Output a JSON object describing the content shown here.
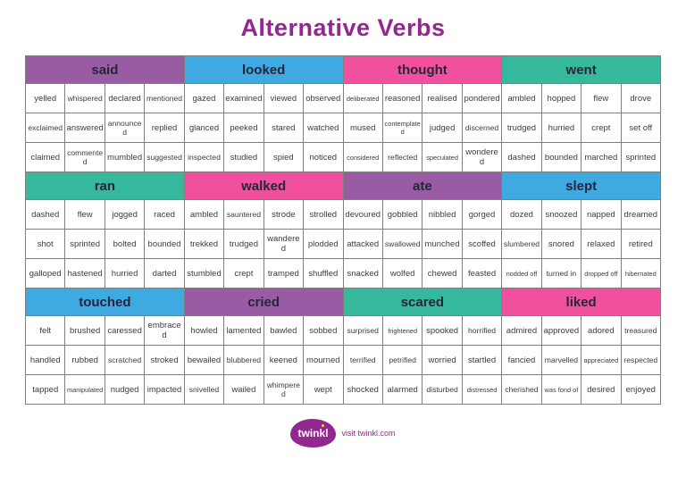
{
  "title": "Alternative Verbs",
  "colors": {
    "purple": "#9A5BA5",
    "blue": "#3FA9E1",
    "pink": "#F0509E",
    "teal": "#35B89B",
    "title_purple": "#92278F"
  },
  "groups": [
    {
      "label": "said",
      "color": "purple",
      "rows": [
        [
          "yelled",
          "whispered",
          "declared",
          "mentioned"
        ],
        [
          "exclaimed",
          "answered",
          "announced",
          "replied"
        ],
        [
          "claimed",
          "commented",
          "mumbled",
          "suggested"
        ]
      ]
    },
    {
      "label": "looked",
      "color": "blue",
      "rows": [
        [
          "gazed",
          "examined",
          "viewed",
          "observed"
        ],
        [
          "glanced",
          "peeked",
          "stared",
          "watched"
        ],
        [
          "inspected",
          "studied",
          "spied",
          "noticed"
        ]
      ]
    },
    {
      "label": "thought",
      "color": "pink",
      "rows": [
        [
          "deliberated",
          "reasoned",
          "realised",
          "pondered"
        ],
        [
          "mused",
          "contemplated",
          "judged",
          "discerned"
        ],
        [
          "considered",
          "reflected",
          "speculated",
          "wondered"
        ]
      ]
    },
    {
      "label": "went",
      "color": "teal",
      "rows": [
        [
          "ambled",
          "hopped",
          "flew",
          "drove"
        ],
        [
          "trudged",
          "hurried",
          "crept",
          "set off"
        ],
        [
          "dashed",
          "bounded",
          "marched",
          "sprinted"
        ]
      ]
    },
    {
      "label": "ran",
      "color": "teal",
      "rows": [
        [
          "dashed",
          "flew",
          "jogged",
          "raced"
        ],
        [
          "shot",
          "sprinted",
          "bolted",
          "bounded"
        ],
        [
          "galloped",
          "hastened",
          "hurried",
          "darted"
        ]
      ]
    },
    {
      "label": "walked",
      "color": "pink",
      "rows": [
        [
          "ambled",
          "sauntered",
          "strode",
          "strolled"
        ],
        [
          "trekked",
          "trudged",
          "wandered",
          "plodded"
        ],
        [
          "stumbled",
          "crept",
          "tramped",
          "shuffled"
        ]
      ]
    },
    {
      "label": "ate",
      "color": "purple",
      "rows": [
        [
          "devoured",
          "gobbled",
          "nibbled",
          "gorged"
        ],
        [
          "attacked",
          "swallowed",
          "munched",
          "scoffed"
        ],
        [
          "snacked",
          "wolfed",
          "chewed",
          "feasted"
        ]
      ]
    },
    {
      "label": "slept",
      "color": "blue",
      "rows": [
        [
          "dozed",
          "snoozed",
          "napped",
          "dreamed"
        ],
        [
          "slumbered",
          "snored",
          "relaxed",
          "retired"
        ],
        [
          "nodded off",
          "turned in",
          "dropped off",
          "hibernated"
        ]
      ]
    },
    {
      "label": "touched",
      "color": "blue",
      "rows": [
        [
          "felt",
          "brushed",
          "caressed",
          "embraced"
        ],
        [
          "handled",
          "rubbed",
          "scratched",
          "stroked"
        ],
        [
          "tapped",
          "manipulated",
          "nudged",
          "impacted"
        ]
      ]
    },
    {
      "label": "cried",
      "color": "purple",
      "rows": [
        [
          "howled",
          "lamented",
          "bawled",
          "sobbed"
        ],
        [
          "bewailed",
          "blubbered",
          "keened",
          "mourned"
        ],
        [
          "snivelled",
          "wailed",
          "whimpered",
          "wept"
        ]
      ]
    },
    {
      "label": "scared",
      "color": "teal",
      "rows": [
        [
          "surprised",
          "frightened",
          "spooked",
          "horrified"
        ],
        [
          "terrified",
          "petrified",
          "worried",
          "startled"
        ],
        [
          "shocked",
          "alarmed",
          "disturbed",
          "distressed"
        ]
      ]
    },
    {
      "label": "liked",
      "color": "pink",
      "rows": [
        [
          "admired",
          "approved",
          "adored",
          "treasured"
        ],
        [
          "fancied",
          "marvelled",
          "appreciated",
          "respected"
        ],
        [
          "cherished",
          "was fond of",
          "desired",
          "enjoyed"
        ]
      ]
    }
  ],
  "footer": {
    "logo_text": "twinkl",
    "visit_text": "visit twinkl.com"
  }
}
